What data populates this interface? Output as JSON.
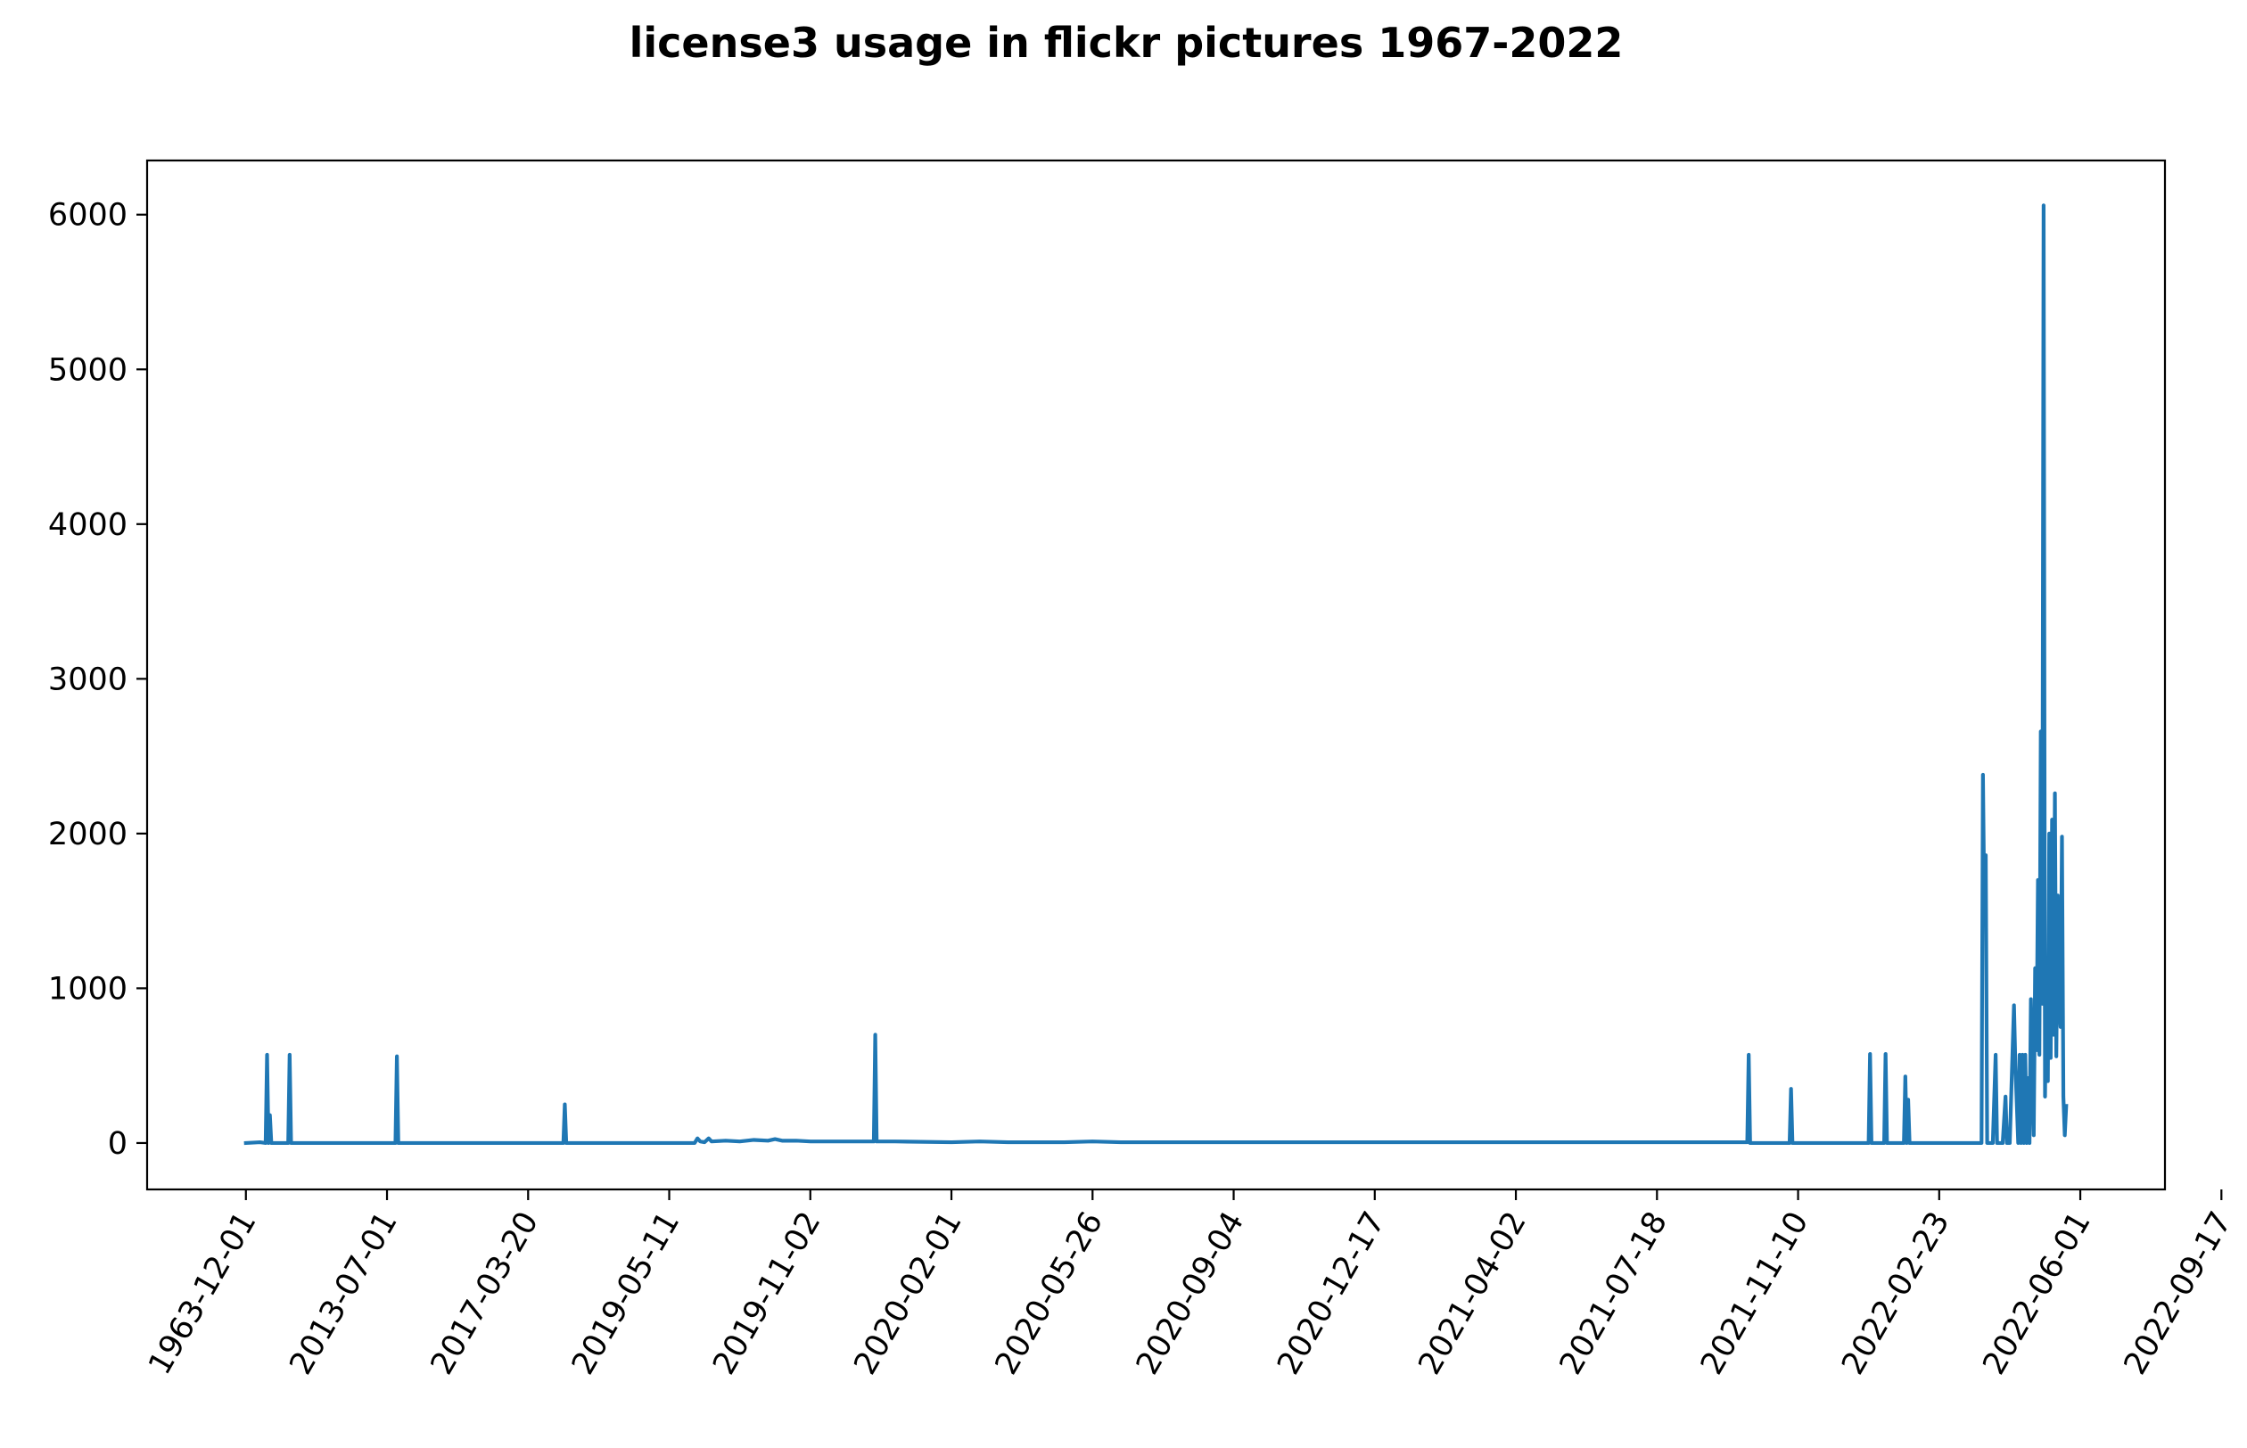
{
  "chart_data": {
    "type": "line",
    "title": "license3 usage in flickr pictures 1967-2022",
    "xlabel": "",
    "ylabel": "",
    "ylim": [
      -300,
      6350
    ],
    "y_ticks": [
      0,
      1000,
      2000,
      3000,
      4000,
      5000,
      6000
    ],
    "x_tick_labels": [
      "1963-12-01",
      "2013-07-01",
      "2017-03-20",
      "2019-05-11",
      "2019-11-02",
      "2020-02-01",
      "2020-05-26",
      "2020-09-04",
      "2020-12-17",
      "2021-04-02",
      "2021-07-18",
      "2021-11-10",
      "2022-02-23",
      "2022-06-01",
      "2022-09-17"
    ],
    "x_note": "categorical daily dates; one tick label per 100 observations",
    "grid": false,
    "color": "#1f77b4",
    "series": [
      {
        "points": [
          [
            0,
            0
          ],
          [
            10,
            5
          ],
          [
            14,
            0
          ],
          [
            15,
            570
          ],
          [
            16,
            0
          ],
          [
            17,
            180
          ],
          [
            18,
            0
          ],
          [
            30,
            0
          ],
          [
            31,
            570
          ],
          [
            32,
            0
          ],
          [
            50,
            0
          ],
          [
            80,
            0
          ],
          [
            106,
            0
          ],
          [
            107,
            560
          ],
          [
            108,
            0
          ],
          [
            150,
            0
          ],
          [
            200,
            0
          ],
          [
            225,
            0
          ],
          [
            226,
            250
          ],
          [
            227,
            0
          ],
          [
            260,
            0
          ],
          [
            300,
            0
          ],
          [
            318,
            0
          ],
          [
            320,
            30
          ],
          [
            322,
            10
          ],
          [
            325,
            5
          ],
          [
            328,
            30
          ],
          [
            330,
            10
          ],
          [
            340,
            15
          ],
          [
            350,
            10
          ],
          [
            360,
            20
          ],
          [
            370,
            15
          ],
          [
            375,
            25
          ],
          [
            380,
            15
          ],
          [
            390,
            15
          ],
          [
            400,
            10
          ],
          [
            420,
            10
          ],
          [
            445,
            10
          ],
          [
            446,
            700
          ],
          [
            447,
            10
          ],
          [
            460,
            10
          ],
          [
            500,
            5
          ],
          [
            520,
            10
          ],
          [
            540,
            5
          ],
          [
            560,
            5
          ],
          [
            580,
            5
          ],
          [
            600,
            10
          ],
          [
            620,
            5
          ],
          [
            640,
            5
          ],
          [
            660,
            5
          ],
          [
            680,
            5
          ],
          [
            700,
            5
          ],
          [
            750,
            5
          ],
          [
            800,
            5
          ],
          [
            850,
            5
          ],
          [
            900,
            5
          ],
          [
            950,
            5
          ],
          [
            1000,
            5
          ],
          [
            1050,
            5
          ],
          [
            1064,
            5
          ],
          [
            1065,
            570
          ],
          [
            1066,
            0
          ],
          [
            1080,
            0
          ],
          [
            1094,
            0
          ],
          [
            1095,
            350
          ],
          [
            1096,
            0
          ],
          [
            1120,
            0
          ],
          [
            1150,
            0
          ],
          [
            1151,
            575
          ],
          [
            1152,
            0
          ],
          [
            1161,
            0
          ],
          [
            1162,
            575
          ],
          [
            1163,
            0
          ],
          [
            1175,
            0
          ],
          [
            1176,
            430
          ],
          [
            1177,
            0
          ],
          [
            1178,
            280
          ],
          [
            1179,
            0
          ],
          [
            1200,
            0
          ],
          [
            1230,
            0
          ],
          [
            1231,
            2380
          ],
          [
            1232,
            1500
          ],
          [
            1233,
            1860
          ],
          [
            1234,
            0
          ],
          [
            1238,
            0
          ],
          [
            1240,
            570
          ],
          [
            1241,
            0
          ],
          [
            1245,
            0
          ],
          [
            1247,
            300
          ],
          [
            1248,
            0
          ],
          [
            1250,
            0
          ],
          [
            1253,
            890
          ],
          [
            1254,
            500
          ],
          [
            1256,
            0
          ],
          [
            1257,
            570
          ],
          [
            1258,
            0
          ],
          [
            1259,
            570
          ],
          [
            1260,
            0
          ],
          [
            1261,
            570
          ],
          [
            1262,
            0
          ],
          [
            1263,
            420
          ],
          [
            1264,
            0
          ],
          [
            1265,
            930
          ],
          [
            1266,
            400
          ],
          [
            1267,
            50
          ],
          [
            1268,
            1130
          ],
          [
            1269,
            600
          ],
          [
            1270,
            1700
          ],
          [
            1271,
            570
          ],
          [
            1272,
            2660
          ],
          [
            1273,
            900
          ],
          [
            1274,
            6060
          ],
          [
            1275,
            300
          ],
          [
            1276,
            1150
          ],
          [
            1277,
            400
          ],
          [
            1278,
            2000
          ],
          [
            1279,
            550
          ],
          [
            1280,
            2090
          ],
          [
            1281,
            700
          ],
          [
            1282,
            2260
          ],
          [
            1283,
            560
          ],
          [
            1284,
            1600
          ],
          [
            1285,
            900
          ],
          [
            1286,
            750
          ],
          [
            1287,
            1980
          ],
          [
            1288,
            300
          ],
          [
            1289,
            50
          ],
          [
            1290,
            240
          ]
        ]
      }
    ]
  }
}
